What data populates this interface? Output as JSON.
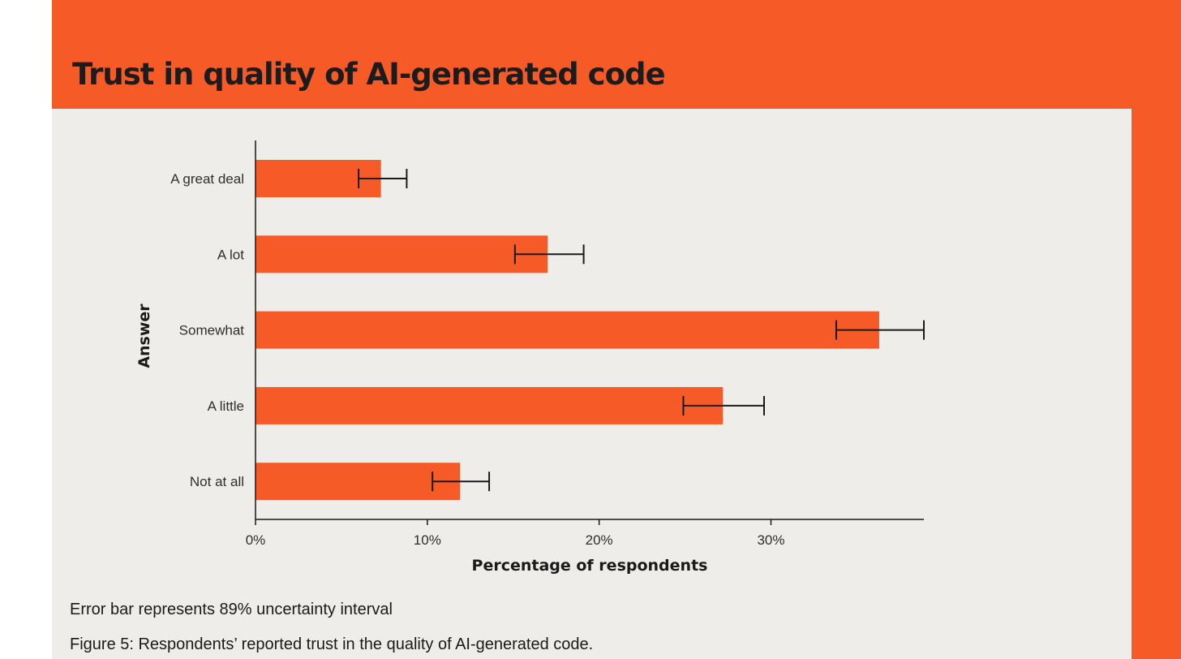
{
  "header": {
    "title": "Trust in quality of AI-generated code"
  },
  "colors": {
    "accent": "#f65b27",
    "panel": "#efedea",
    "axis": "#1a1a1a"
  },
  "chart_data": {
    "type": "bar",
    "orientation": "horizontal",
    "title": "Trust in quality of AI-generated code",
    "xlabel": "Percentage of respondents",
    "ylabel": "Answer",
    "categories": [
      "A great deal",
      "A lot",
      "Somewhat",
      "A little",
      "Not at all"
    ],
    "values": [
      7.3,
      17.0,
      36.3,
      27.2,
      11.9
    ],
    "error_low": [
      6.0,
      15.1,
      33.8,
      24.9,
      10.3
    ],
    "error_high": [
      8.8,
      19.1,
      38.9,
      29.6,
      13.6
    ],
    "xlim": [
      0,
      38.9
    ],
    "xticks": [
      0,
      10,
      20,
      30
    ],
    "xtick_labels": [
      "0%",
      "10%",
      "20%",
      "30%"
    ],
    "grid": false,
    "legend": "none",
    "bar_color": "#f65b27"
  },
  "captions": {
    "note": "Error bar represents 89% uncertainty interval",
    "figure": "Figure 5: Respondents’ reported trust in the quality of AI-generated code."
  }
}
